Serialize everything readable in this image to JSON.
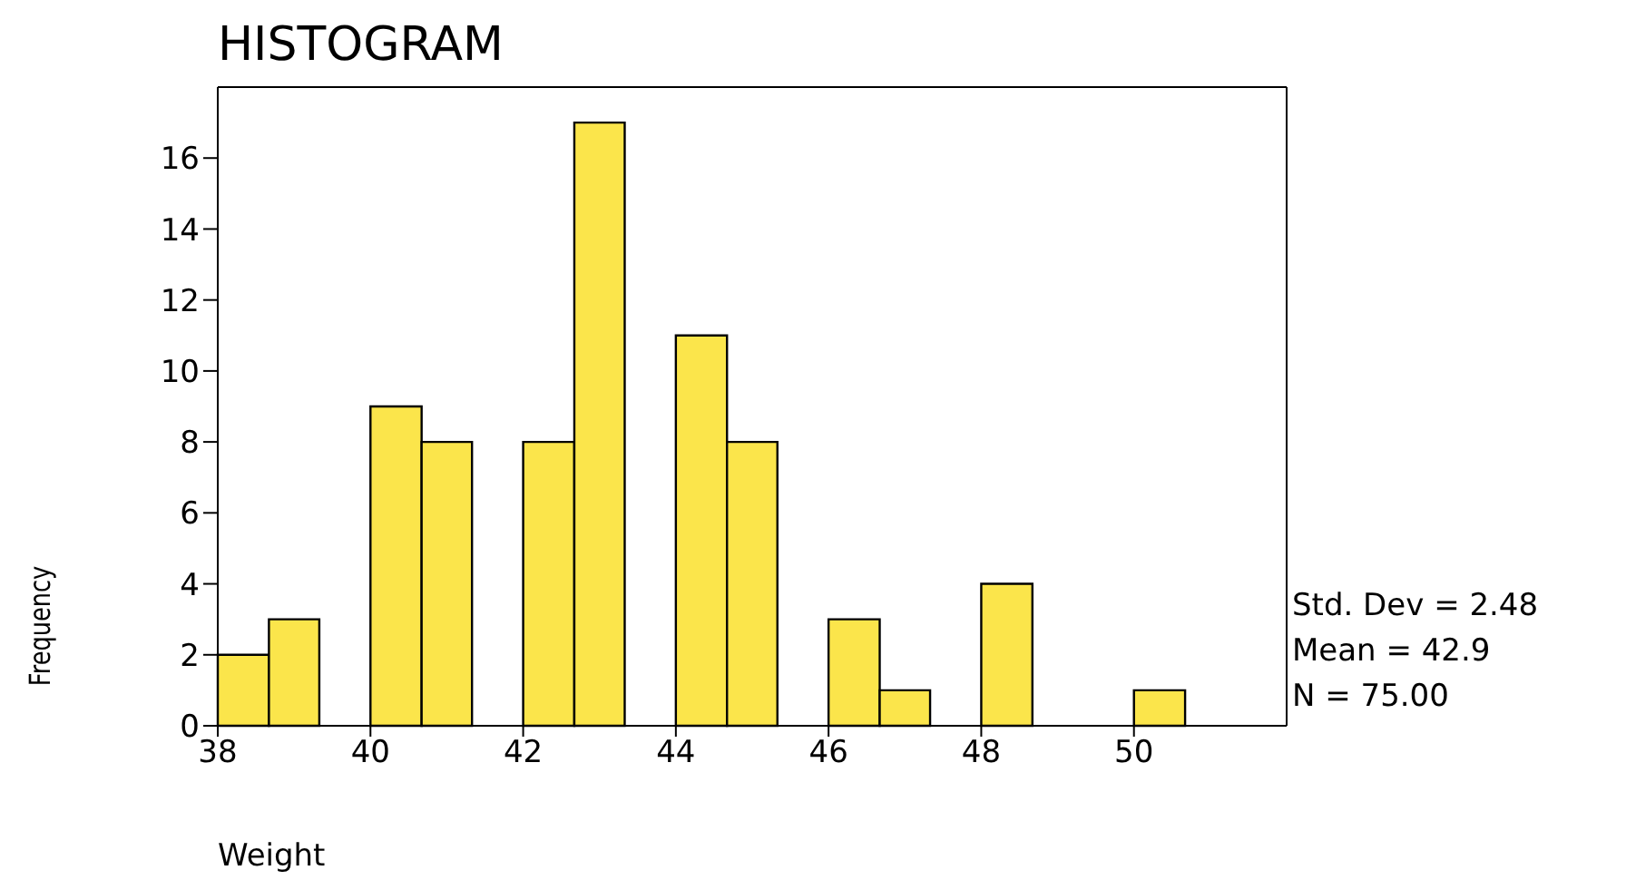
{
  "chart_data": {
    "type": "histogram",
    "title": "HISTOGRAM",
    "xlabel": "Weight",
    "ylabel": "Frequency",
    "bins": [
      38,
      38.67,
      39.33,
      40,
      40.67,
      41.33,
      42,
      42.67,
      43.33,
      44,
      44.67,
      45.33,
      46,
      46.67,
      47.33,
      48,
      48.67,
      50,
      50.67
    ],
    "values": [
      2,
      3,
      0,
      9,
      8,
      0,
      8,
      17,
      0,
      11,
      8,
      0,
      3,
      1,
      0,
      4,
      0,
      1
    ],
    "color": "#fbe54b",
    "xlim": [
      38,
      52
    ],
    "xticks": [
      38,
      40,
      42,
      44,
      46,
      48,
      50
    ],
    "ylim": [
      0,
      18
    ],
    "yticks": [
      0,
      2,
      4,
      6,
      8,
      10,
      12,
      14,
      16
    ],
    "annotations": [
      "Std. Dev = 2.48",
      "Mean = 42.9",
      "N = 75.00"
    ]
  }
}
